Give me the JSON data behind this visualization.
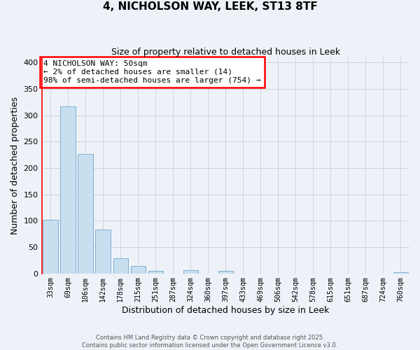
{
  "title": "4, NICHOLSON WAY, LEEK, ST13 8TF",
  "subtitle": "Size of property relative to detached houses in Leek",
  "xlabel": "Distribution of detached houses by size in Leek",
  "ylabel": "Number of detached properties",
  "bar_color": "#c8dff0",
  "bar_edge_color": "#7ab0d0",
  "background_color": "#eef2f8",
  "grid_color": "#c8ccd8",
  "categories": [
    "33sqm",
    "69sqm",
    "106sqm",
    "142sqm",
    "178sqm",
    "215sqm",
    "251sqm",
    "287sqm",
    "324sqm",
    "360sqm",
    "397sqm",
    "433sqm",
    "469sqm",
    "506sqm",
    "542sqm",
    "578sqm",
    "615sqm",
    "651sqm",
    "687sqm",
    "724sqm",
    "760sqm"
  ],
  "values": [
    101,
    317,
    226,
    83,
    28,
    14,
    5,
    0,
    6,
    0,
    5,
    0,
    0,
    0,
    0,
    0,
    0,
    0,
    0,
    0,
    2
  ],
  "ylim": [
    0,
    410
  ],
  "yticks": [
    0,
    50,
    100,
    150,
    200,
    250,
    300,
    350,
    400
  ],
  "property_label": "4 NICHOLSON WAY: 50sqm",
  "annotation_line1": "← 2% of detached houses are smaller (14)",
  "annotation_line2": "98% of semi-detached houses are larger (754) →",
  "footer1": "Contains HM Land Registry data © Crown copyright and database right 2025.",
  "footer2": "Contains public sector information licensed under the Open Government Licence v3.0."
}
